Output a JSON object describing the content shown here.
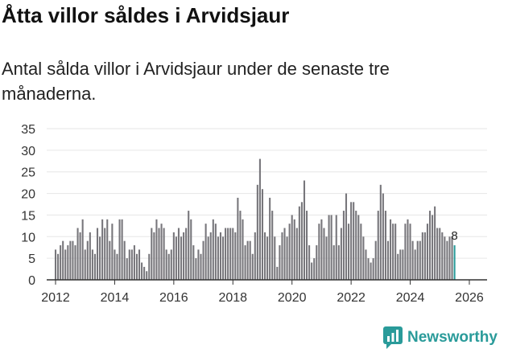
{
  "title": "Åtta villor såldes i Arvidsjaur",
  "subtitle": "Antal sålda villor i Arvidsjaur under de senaste tre månaderna.",
  "brand": {
    "name": "Newsworthy",
    "icon": "newsworthy-logo-icon"
  },
  "colors": {
    "bar": "#77767b",
    "highlight": "#2a9b9a",
    "grid": "#e6e6e6",
    "axis": "#333333"
  },
  "chart_data": {
    "type": "bar",
    "title": "Åtta villor såldes i Arvidsjaur",
    "xlabel": "",
    "ylabel": "",
    "ylim": [
      0,
      35
    ],
    "yticks": [
      "0",
      "5",
      "10",
      "15",
      "20",
      "25",
      "30",
      "35"
    ],
    "xlim": [
      2011.7,
      2026.6
    ],
    "xticks": [
      {
        "value": 2012,
        "label": "2012"
      },
      {
        "value": 2014,
        "label": "2014"
      },
      {
        "value": 2016,
        "label": "2016"
      },
      {
        "value": 2018,
        "label": "2018"
      },
      {
        "value": 2020,
        "label": "2020"
      },
      {
        "value": 2022,
        "label": "2022"
      },
      {
        "value": 2024,
        "label": "2024"
      },
      {
        "value": 2026,
        "label": "2026"
      }
    ],
    "start": 2012.0,
    "step": 0.08333,
    "values": [
      7,
      6,
      8,
      9,
      7,
      8,
      9,
      9,
      8,
      12,
      11,
      14,
      7,
      9,
      11,
      7,
      6,
      12,
      10,
      14,
      12,
      14,
      9,
      13,
      7,
      6,
      14,
      14,
      9,
      5,
      7,
      7,
      8,
      6,
      7,
      4,
      3,
      2,
      6,
      12,
      11,
      14,
      12,
      13,
      12,
      7,
      6,
      7,
      11,
      10,
      12,
      10,
      11,
      12,
      16,
      14,
      8,
      5,
      7,
      6,
      9,
      13,
      10,
      11,
      14,
      13,
      10,
      11,
      10,
      12,
      12,
      12,
      12,
      11,
      19,
      16,
      14,
      8,
      9,
      9,
      6,
      11,
      22,
      28,
      21,
      11,
      10,
      19,
      16,
      10,
      3,
      8,
      11,
      12,
      10,
      13,
      15,
      14,
      12,
      17,
      18,
      23,
      16,
      8,
      4,
      5,
      8,
      13,
      14,
      12,
      10,
      15,
      15,
      8,
      15,
      8,
      12,
      16,
      20,
      13,
      18,
      18,
      16,
      15,
      13,
      10,
      7,
      5,
      4,
      5,
      9,
      16,
      22,
      20,
      16,
      9,
      14,
      13,
      13,
      6,
      7,
      7,
      13,
      14,
      13,
      9,
      7,
      9,
      9,
      11,
      11,
      13,
      16,
      15,
      17,
      12,
      12,
      11,
      10,
      9,
      10,
      10,
      8
    ],
    "annotations": [
      {
        "text": "8",
        "index": 168
      }
    ]
  }
}
